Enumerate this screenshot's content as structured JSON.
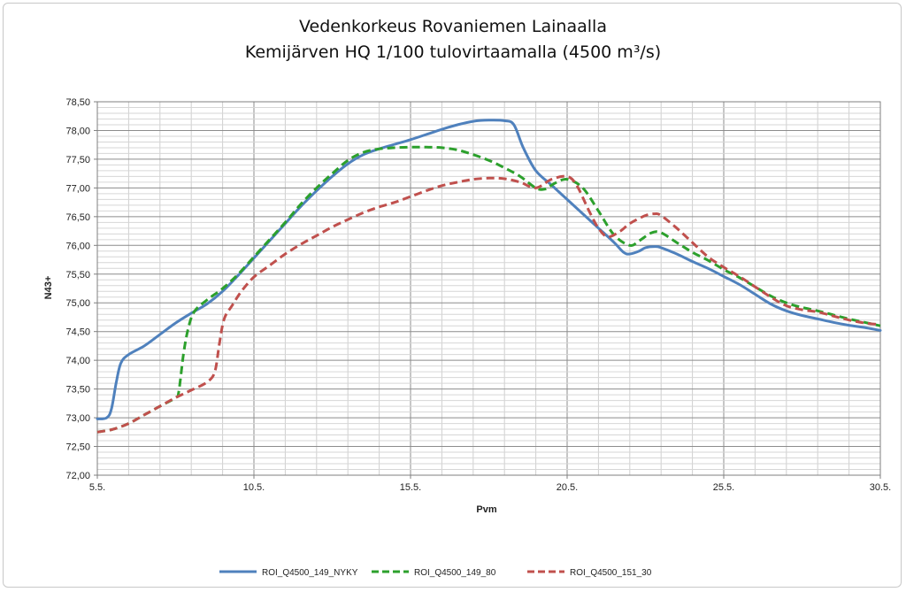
{
  "chart_data": {
    "type": "line",
    "title_line1": "Vedenkorkeus Rovaniemen Lainaalla",
    "title_line2": "Kemijärven HQ 1/100 tulovirtaamalla (4500 m³/s)",
    "xlabel": "Pvm",
    "ylabel": "N43+",
    "x_day_range": [
      5,
      30
    ],
    "x_ticks": [
      {
        "day": 5,
        "label": "5.5."
      },
      {
        "day": 10,
        "label": "10.5."
      },
      {
        "day": 15,
        "label": "15.5."
      },
      {
        "day": 20,
        "label": "20.5."
      },
      {
        "day": 25,
        "label": "25.5."
      },
      {
        "day": 30,
        "label": "30.5."
      }
    ],
    "ylim": [
      72.0,
      78.5
    ],
    "y_ticks": [
      "72,00",
      "72,50",
      "73,00",
      "73,50",
      "74,00",
      "74,50",
      "75,00",
      "75,50",
      "76,00",
      "76,50",
      "77,00",
      "77,50",
      "78,00",
      "78,50"
    ],
    "grid": true,
    "legend_position": "bottom",
    "series": [
      {
        "name": "ROI_Q4500_149_NYKY",
        "color": "#4f81bd",
        "dash": "solid",
        "points": [
          [
            5.0,
            72.98
          ],
          [
            5.3,
            73.0
          ],
          [
            5.45,
            73.15
          ],
          [
            5.6,
            73.6
          ],
          [
            5.75,
            73.95
          ],
          [
            6.0,
            74.1
          ],
          [
            6.5,
            74.25
          ],
          [
            7.0,
            74.45
          ],
          [
            7.5,
            74.65
          ],
          [
            8.0,
            74.82
          ],
          [
            8.5,
            74.98
          ],
          [
            9.0,
            75.2
          ],
          [
            9.5,
            75.48
          ],
          [
            10.0,
            75.78
          ],
          [
            10.5,
            76.08
          ],
          [
            11.0,
            76.38
          ],
          [
            11.5,
            76.68
          ],
          [
            12.0,
            76.95
          ],
          [
            12.5,
            77.2
          ],
          [
            13.0,
            77.42
          ],
          [
            13.5,
            77.58
          ],
          [
            14.0,
            77.68
          ],
          [
            14.5,
            77.76
          ],
          [
            15.0,
            77.84
          ],
          [
            15.5,
            77.93
          ],
          [
            16.0,
            78.02
          ],
          [
            16.5,
            78.1
          ],
          [
            17.0,
            78.16
          ],
          [
            17.5,
            78.18
          ],
          [
            18.0,
            78.17
          ],
          [
            18.3,
            78.1
          ],
          [
            18.6,
            77.7
          ],
          [
            19.0,
            77.3
          ],
          [
            19.5,
            77.05
          ],
          [
            20.0,
            76.8
          ],
          [
            20.5,
            76.55
          ],
          [
            21.0,
            76.3
          ],
          [
            21.5,
            76.05
          ],
          [
            21.8,
            75.88
          ],
          [
            22.0,
            75.85
          ],
          [
            22.3,
            75.9
          ],
          [
            22.5,
            75.96
          ],
          [
            22.8,
            75.98
          ],
          [
            23.0,
            75.96
          ],
          [
            23.5,
            75.85
          ],
          [
            24.0,
            75.72
          ],
          [
            24.5,
            75.6
          ],
          [
            25.0,
            75.46
          ],
          [
            25.5,
            75.32
          ],
          [
            26.0,
            75.15
          ],
          [
            26.5,
            74.98
          ],
          [
            27.0,
            74.86
          ],
          [
            27.5,
            74.78
          ],
          [
            28.0,
            74.72
          ],
          [
            28.5,
            74.66
          ],
          [
            29.0,
            74.61
          ],
          [
            29.5,
            74.57
          ],
          [
            30.0,
            74.52
          ]
        ]
      },
      {
        "name": "ROI_Q4500_149_80",
        "color": "#2ca02c",
        "dash": "dashed",
        "points": [
          [
            5.0,
            72.75
          ],
          [
            5.5,
            72.8
          ],
          [
            6.0,
            72.9
          ],
          [
            6.5,
            73.05
          ],
          [
            7.0,
            73.2
          ],
          [
            7.5,
            73.35
          ],
          [
            7.6,
            73.45
          ],
          [
            7.75,
            74.1
          ],
          [
            7.9,
            74.55
          ],
          [
            8.1,
            74.85
          ],
          [
            8.5,
            75.05
          ],
          [
            9.0,
            75.25
          ],
          [
            9.5,
            75.5
          ],
          [
            10.0,
            75.8
          ],
          [
            10.5,
            76.1
          ],
          [
            11.0,
            76.4
          ],
          [
            11.5,
            76.72
          ],
          [
            12.0,
            77.0
          ],
          [
            12.5,
            77.25
          ],
          [
            13.0,
            77.48
          ],
          [
            13.5,
            77.62
          ],
          [
            14.0,
            77.68
          ],
          [
            14.5,
            77.7
          ],
          [
            15.0,
            77.71
          ],
          [
            15.5,
            77.71
          ],
          [
            16.0,
            77.7
          ],
          [
            16.5,
            77.66
          ],
          [
            17.0,
            77.58
          ],
          [
            17.5,
            77.48
          ],
          [
            18.0,
            77.35
          ],
          [
            18.5,
            77.2
          ],
          [
            19.0,
            77.0
          ],
          [
            19.3,
            76.98
          ],
          [
            19.6,
            77.08
          ],
          [
            20.0,
            77.15
          ],
          [
            20.5,
            77.0
          ],
          [
            21.0,
            76.6
          ],
          [
            21.5,
            76.18
          ],
          [
            22.0,
            76.0
          ],
          [
            22.3,
            76.08
          ],
          [
            22.7,
            76.22
          ],
          [
            23.0,
            76.22
          ],
          [
            23.5,
            76.05
          ],
          [
            24.0,
            75.88
          ],
          [
            24.5,
            75.74
          ],
          [
            25.0,
            75.58
          ],
          [
            25.5,
            75.44
          ],
          [
            26.0,
            75.28
          ],
          [
            26.5,
            75.12
          ],
          [
            27.0,
            75.0
          ],
          [
            27.5,
            74.92
          ],
          [
            28.0,
            74.86
          ],
          [
            28.5,
            74.79
          ],
          [
            29.0,
            74.72
          ],
          [
            29.5,
            74.66
          ],
          [
            30.0,
            74.6
          ]
        ]
      },
      {
        "name": "ROI_Q4500_151_30",
        "color": "#c0504d",
        "dash": "dashed",
        "points": [
          [
            5.0,
            72.75
          ],
          [
            5.5,
            72.8
          ],
          [
            6.0,
            72.9
          ],
          [
            6.5,
            73.05
          ],
          [
            7.0,
            73.2
          ],
          [
            7.5,
            73.35
          ],
          [
            8.0,
            73.48
          ],
          [
            8.5,
            73.62
          ],
          [
            8.75,
            73.8
          ],
          [
            8.9,
            74.3
          ],
          [
            9.05,
            74.72
          ],
          [
            9.3,
            74.95
          ],
          [
            9.6,
            75.2
          ],
          [
            10.0,
            75.45
          ],
          [
            10.5,
            75.65
          ],
          [
            11.0,
            75.85
          ],
          [
            11.5,
            76.02
          ],
          [
            12.0,
            76.17
          ],
          [
            12.5,
            76.32
          ],
          [
            13.0,
            76.45
          ],
          [
            13.5,
            76.57
          ],
          [
            14.0,
            76.67
          ],
          [
            14.5,
            76.75
          ],
          [
            15.0,
            76.85
          ],
          [
            15.5,
            76.95
          ],
          [
            16.0,
            77.04
          ],
          [
            16.5,
            77.1
          ],
          [
            17.0,
            77.15
          ],
          [
            17.5,
            77.17
          ],
          [
            18.0,
            77.16
          ],
          [
            18.5,
            77.1
          ],
          [
            19.0,
            77.0
          ],
          [
            19.5,
            77.15
          ],
          [
            20.0,
            77.2
          ],
          [
            20.3,
            77.05
          ],
          [
            20.7,
            76.6
          ],
          [
            21.0,
            76.3
          ],
          [
            21.3,
            76.15
          ],
          [
            21.7,
            76.25
          ],
          [
            22.0,
            76.38
          ],
          [
            22.5,
            76.52
          ],
          [
            22.8,
            76.55
          ],
          [
            23.0,
            76.52
          ],
          [
            23.5,
            76.3
          ],
          [
            24.0,
            76.05
          ],
          [
            24.5,
            75.8
          ],
          [
            25.0,
            75.62
          ],
          [
            25.5,
            75.46
          ],
          [
            26.0,
            75.28
          ],
          [
            26.5,
            75.1
          ],
          [
            27.0,
            74.95
          ],
          [
            27.5,
            74.88
          ],
          [
            28.0,
            74.84
          ],
          [
            28.5,
            74.77
          ],
          [
            29.0,
            74.7
          ],
          [
            29.5,
            74.65
          ],
          [
            30.0,
            74.62
          ]
        ]
      }
    ]
  }
}
